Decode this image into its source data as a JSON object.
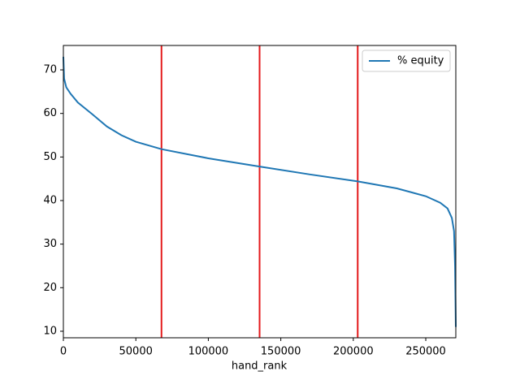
{
  "chart_data": {
    "type": "line",
    "x_label": "hand_rank",
    "x": [
      0,
      500,
      2000,
      5000,
      10000,
      20000,
      30000,
      40000,
      50000,
      67681,
      100000,
      135362,
      170000,
      203044,
      230000,
      250000,
      260000,
      265000,
      268000,
      269500,
      270200,
      270725
    ],
    "series": [
      {
        "name": "% equity",
        "color": "#1f77b4",
        "values": [
          73,
          68,
          66,
          64.5,
          62.5,
          59.8,
          57,
          55,
          53.5,
          51.8,
          49.7,
          47.8,
          46,
          44.4,
          42.8,
          41,
          39.5,
          38.2,
          36,
          33,
          25,
          11
        ]
      }
    ],
    "vlines": {
      "color": "#e41a1c",
      "values": [
        67681,
        135362,
        203044
      ]
    },
    "xlim": [
      0,
      270725
    ],
    "ylim": [
      8.5,
      75.6
    ],
    "xticks": [
      0,
      50000,
      100000,
      150000,
      200000,
      250000
    ],
    "yticks": [
      10,
      20,
      30,
      40,
      50,
      60,
      70
    ],
    "legend": "upper right"
  }
}
